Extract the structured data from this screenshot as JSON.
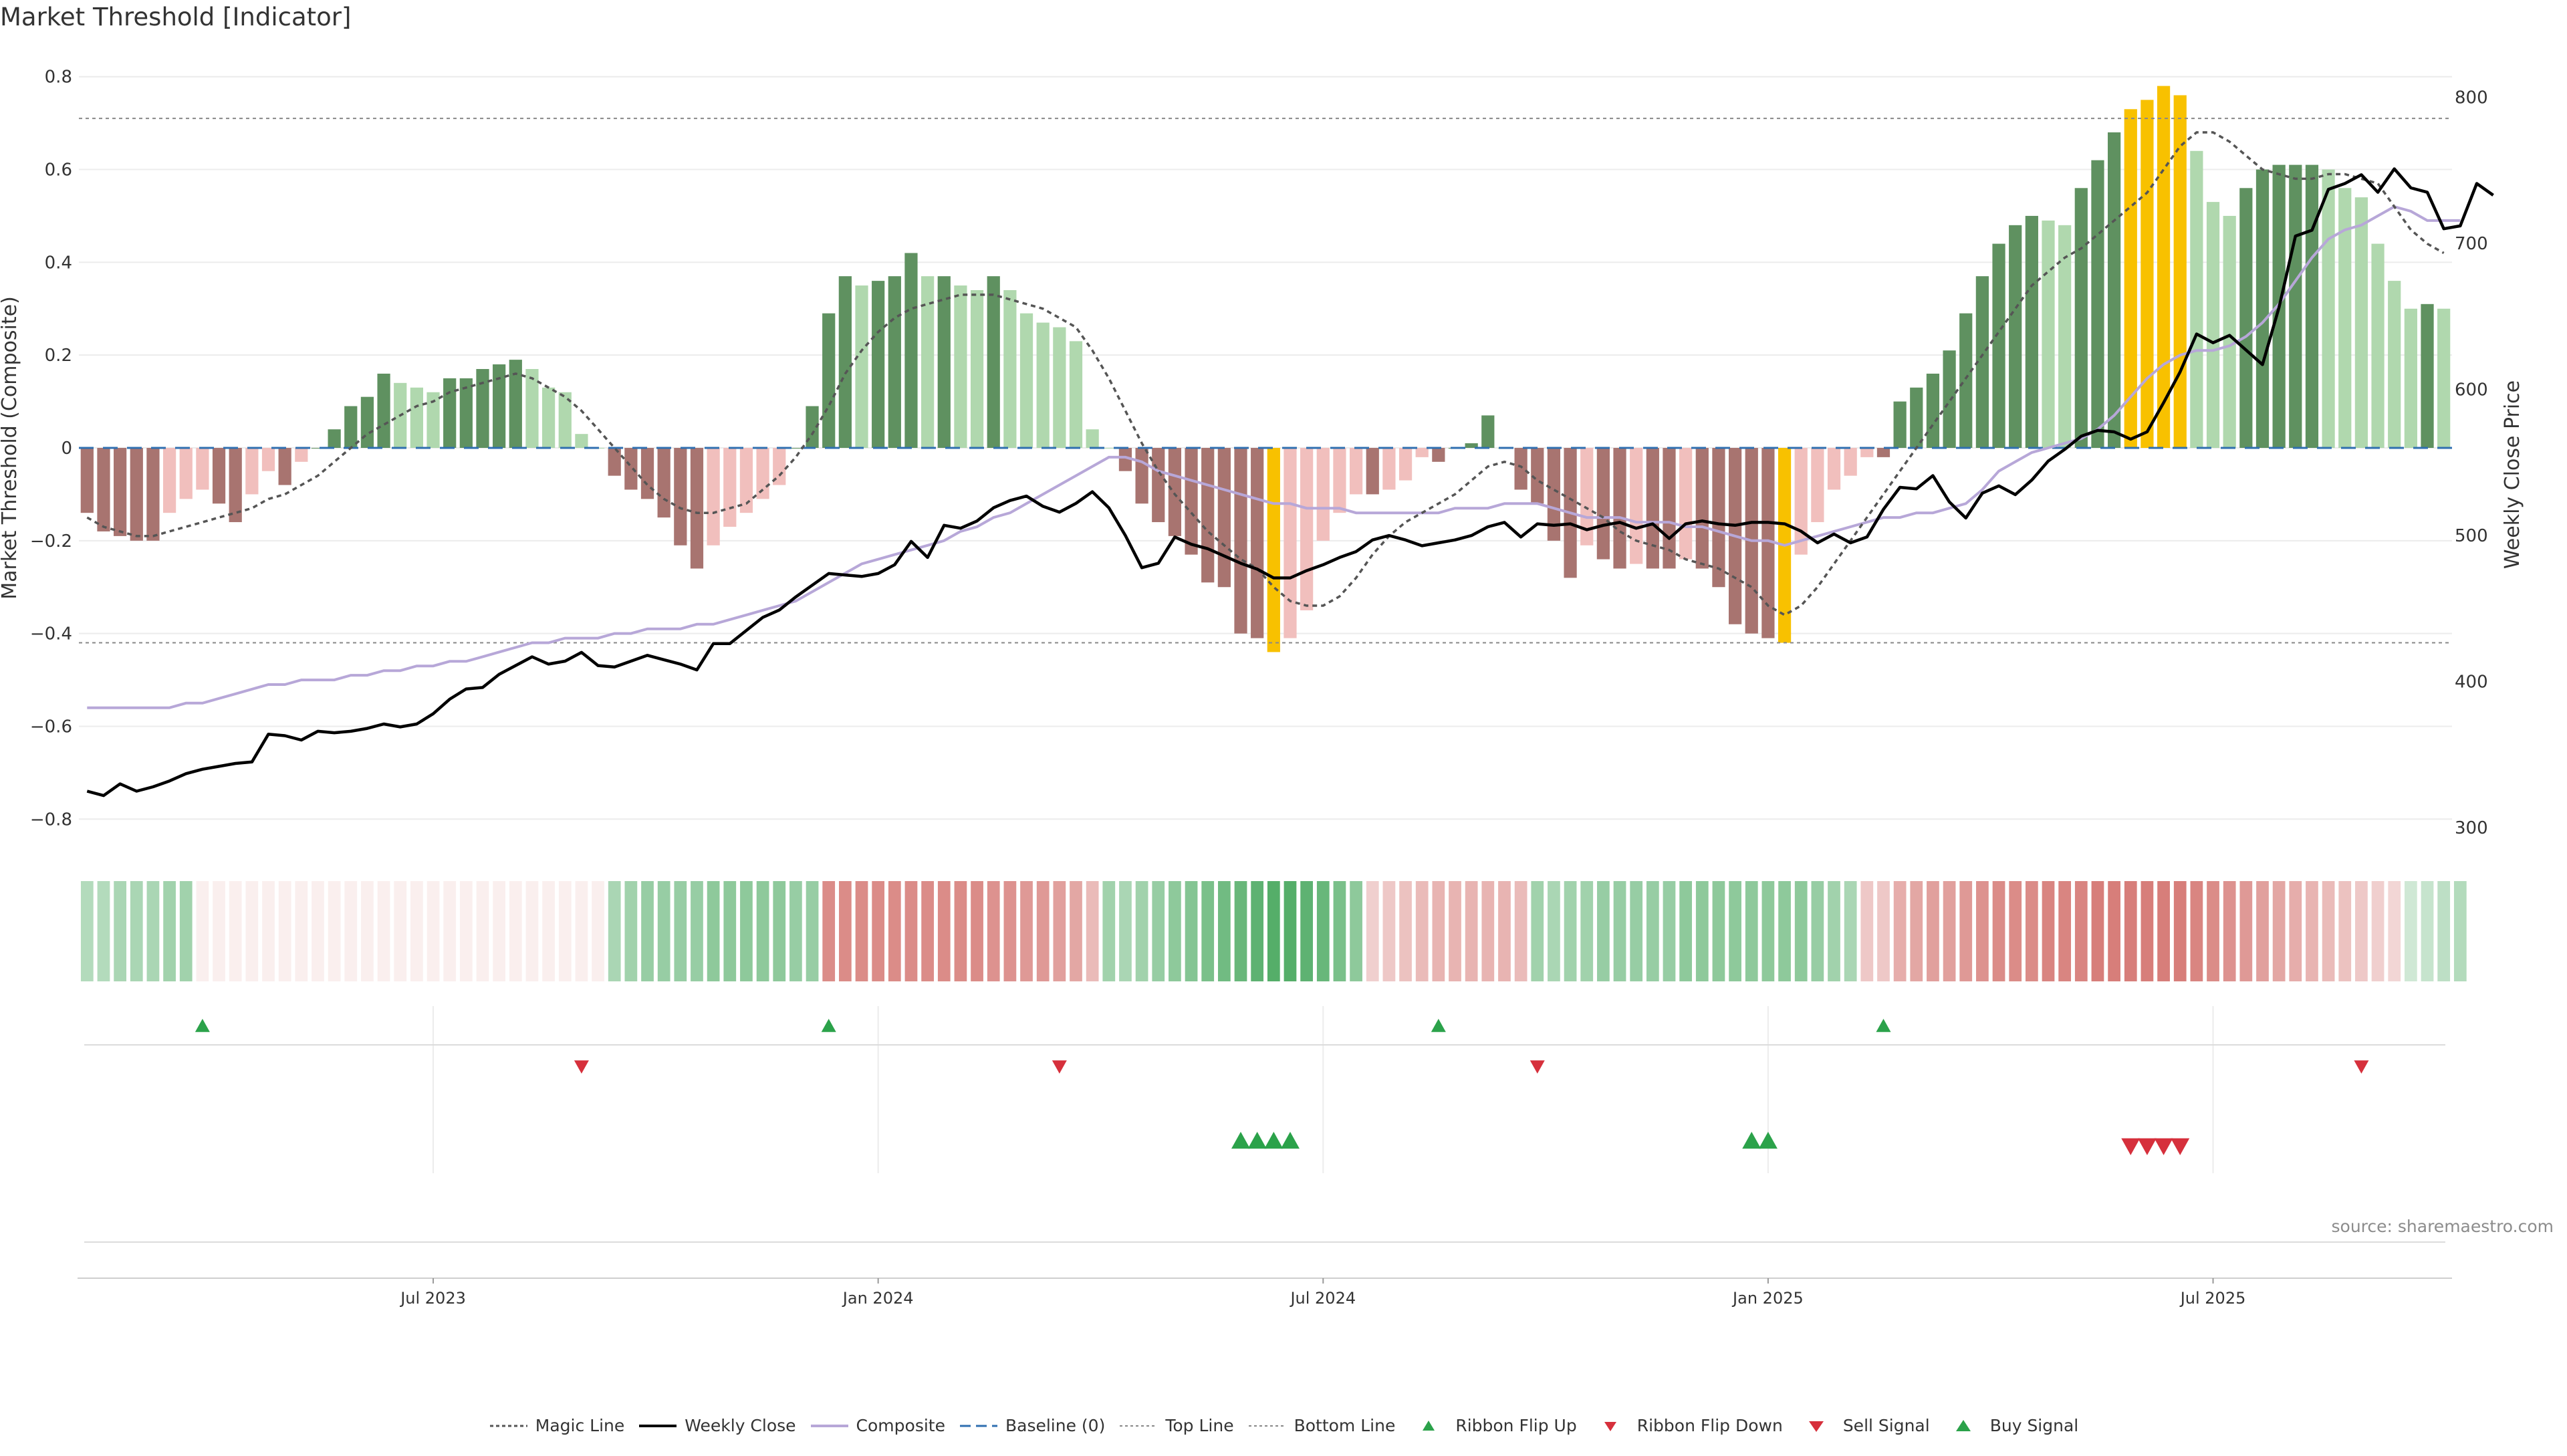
{
  "title": "Market Threshold [Indicator]",
  "source": "source: sharemaestro.com",
  "chart_data": {
    "type": "bar",
    "ylabel_left": "Market Threshold (Composite)",
    "ylabel_right": "Weekly Close Price",
    "ylim_left": [
      -0.85,
      0.85
    ],
    "yticks_left": [
      "0.8",
      "0.6",
      "0.4",
      "0.2",
      "0",
      "−0.2",
      "−0.4",
      "−0.6",
      "−0.8"
    ],
    "ylim_right": [
      290,
      830
    ],
    "yticks_right": [
      "800",
      "700",
      "600",
      "500",
      "400",
      "300"
    ],
    "xticks": [
      "Jul 2023",
      "Jan 2024",
      "Jul 2024",
      "Jan 2025",
      "Jul 2025"
    ],
    "top_line": 0.71,
    "bottom_line": -0.42,
    "grid": true,
    "legend_position": "bottom",
    "composite_bars": [
      -0.14,
      -0.18,
      -0.19,
      -0.2,
      -0.2,
      -0.14,
      -0.11,
      -0.09,
      -0.12,
      -0.16,
      -0.1,
      -0.05,
      -0.08,
      -0.03,
      0,
      0.04,
      0.09,
      0.11,
      0.16,
      0.14,
      0.13,
      0.12,
      0.15,
      0.15,
      0.17,
      0.18,
      0.19,
      0.17,
      0.13,
      0.12,
      0.03,
      0,
      -0.06,
      -0.09,
      -0.11,
      -0.15,
      -0.21,
      -0.26,
      -0.21,
      -0.17,
      -0.14,
      -0.11,
      -0.08,
      0,
      0.09,
      0.29,
      0.37,
      0.35,
      0.36,
      0.37,
      0.42,
      0.37,
      0.37,
      0.35,
      0.34,
      0.37,
      0.34,
      0.29,
      0.27,
      0.26,
      0.23,
      0.04,
      0,
      -0.05,
      -0.12,
      -0.16,
      -0.19,
      -0.23,
      -0.29,
      -0.3,
      -0.4,
      -0.41,
      -0.44,
      -0.41,
      -0.35,
      -0.2,
      -0.14,
      -0.1,
      -0.1,
      -0.09,
      -0.07,
      -0.02,
      -0.03,
      0,
      0.01,
      0.07,
      0,
      -0.09,
      -0.12,
      -0.2,
      -0.28,
      -0.21,
      -0.24,
      -0.26,
      -0.25,
      -0.26,
      -0.26,
      -0.24,
      -0.26,
      -0.3,
      -0.38,
      -0.4,
      -0.41,
      -0.42,
      -0.23,
      -0.16,
      -0.09,
      -0.06,
      -0.02,
      -0.02,
      0.1,
      0.13,
      0.16,
      0.21,
      0.29,
      0.37,
      0.44,
      0.48,
      0.5,
      0.49,
      0.48,
      0.56,
      0.62,
      0.68,
      0.73,
      0.75,
      0.78,
      0.76,
      0.64,
      0.53,
      0.5,
      0.56,
      0.6,
      0.61,
      0.61,
      0.61,
      0.6,
      0.56,
      0.54,
      0.44,
      0.36,
      0.3,
      0.31,
      0.3
    ],
    "magic_line": [
      -0.15,
      -0.17,
      -0.18,
      -0.19,
      -0.19,
      -0.18,
      -0.17,
      -0.16,
      -0.15,
      -0.14,
      -0.13,
      -0.11,
      -0.1,
      -0.08,
      -0.06,
      -0.03,
      0,
      0.03,
      0.05,
      0.07,
      0.09,
      0.1,
      0.12,
      0.13,
      0.14,
      0.15,
      0.16,
      0.15,
      0.13,
      0.11,
      0.08,
      0.04,
      0,
      -0.04,
      -0.08,
      -0.11,
      -0.13,
      -0.14,
      -0.14,
      -0.13,
      -0.12,
      -0.09,
      -0.06,
      -0.02,
      0.03,
      0.09,
      0.16,
      0.21,
      0.25,
      0.28,
      0.3,
      0.31,
      0.32,
      0.33,
      0.33,
      0.33,
      0.32,
      0.31,
      0.3,
      0.28,
      0.26,
      0.21,
      0.15,
      0.08,
      0.01,
      -0.05,
      -0.1,
      -0.14,
      -0.18,
      -0.21,
      -0.24,
      -0.26,
      -0.3,
      -0.33,
      -0.34,
      -0.34,
      -0.32,
      -0.28,
      -0.23,
      -0.19,
      -0.16,
      -0.14,
      -0.12,
      -0.1,
      -0.07,
      -0.04,
      -0.03,
      -0.04,
      -0.07,
      -0.09,
      -0.11,
      -0.13,
      -0.15,
      -0.18,
      -0.2,
      -0.21,
      -0.22,
      -0.24,
      -0.25,
      -0.26,
      -0.28,
      -0.3,
      -0.34,
      -0.36,
      -0.34,
      -0.3,
      -0.25,
      -0.2,
      -0.15,
      -0.1,
      -0.05,
      0,
      0.05,
      0.1,
      0.15,
      0.2,
      0.25,
      0.3,
      0.35,
      0.38,
      0.41,
      0.43,
      0.46,
      0.49,
      0.52,
      0.55,
      0.6,
      0.65,
      0.68,
      0.68,
      0.66,
      0.63,
      0.6,
      0.59,
      0.58,
      0.58,
      0.59,
      0.59,
      0.58,
      0.57,
      0.52,
      0.47,
      0.44,
      0.42
    ],
    "composite_line": [
      -0.56,
      -0.56,
      -0.56,
      -0.56,
      -0.56,
      -0.56,
      -0.55,
      -0.55,
      -0.54,
      -0.53,
      -0.52,
      -0.51,
      -0.51,
      -0.5,
      -0.5,
      -0.5,
      -0.49,
      -0.49,
      -0.48,
      -0.48,
      -0.47,
      -0.47,
      -0.46,
      -0.46,
      -0.45,
      -0.44,
      -0.43,
      -0.42,
      -0.42,
      -0.41,
      -0.41,
      -0.41,
      -0.4,
      -0.4,
      -0.39,
      -0.39,
      -0.39,
      -0.38,
      -0.38,
      -0.37,
      -0.36,
      -0.35,
      -0.34,
      -0.33,
      -0.31,
      -0.29,
      -0.27,
      -0.25,
      -0.24,
      -0.23,
      -0.22,
      -0.21,
      -0.2,
      -0.18,
      -0.17,
      -0.15,
      -0.14,
      -0.12,
      -0.1,
      -0.08,
      -0.06,
      -0.04,
      -0.02,
      -0.02,
      -0.03,
      -0.05,
      -0.06,
      -0.07,
      -0.08,
      -0.09,
      -0.1,
      -0.11,
      -0.12,
      -0.12,
      -0.13,
      -0.13,
      -0.13,
      -0.14,
      -0.14,
      -0.14,
      -0.14,
      -0.14,
      -0.14,
      -0.13,
      -0.13,
      -0.13,
      -0.12,
      -0.12,
      -0.12,
      -0.13,
      -0.14,
      -0.15,
      -0.15,
      -0.15,
      -0.16,
      -0.16,
      -0.16,
      -0.17,
      -0.17,
      -0.18,
      -0.19,
      -0.2,
      -0.2,
      -0.21,
      -0.2,
      -0.19,
      -0.18,
      -0.17,
      -0.16,
      -0.15,
      -0.15,
      -0.14,
      -0.14,
      -0.13,
      -0.12,
      -0.09,
      -0.05,
      -0.03,
      -0.01,
      0,
      0.01,
      0.02,
      0.04,
      0.07,
      0.11,
      0.15,
      0.18,
      0.2,
      0.21,
      0.21,
      0.22,
      0.24,
      0.27,
      0.31,
      0.36,
      0.41,
      0.45,
      0.47,
      0.48,
      0.5,
      0.52,
      0.51,
      0.49,
      0.49,
      0.49
    ],
    "weekly_close": [
      325,
      322,
      330,
      325,
      328,
      332,
      337,
      340,
      342,
      344,
      345,
      364,
      363,
      360,
      366,
      365,
      366,
      368,
      371,
      369,
      371,
      378,
      388,
      395,
      396,
      405,
      411,
      417,
      412,
      414,
      420,
      411,
      410,
      414,
      418,
      415,
      412,
      408,
      426,
      426,
      435,
      444,
      449,
      458,
      466,
      474,
      473,
      472,
      474,
      480,
      496,
      485,
      507,
      505,
      510,
      519,
      524,
      527,
      520,
      516,
      522,
      530,
      519,
      500,
      478,
      481,
      499,
      494,
      491,
      486,
      481,
      477,
      471,
      471,
      476,
      480,
      485,
      489,
      497,
      500,
      497,
      493,
      495,
      497,
      500,
      506,
      509,
      499,
      508,
      507,
      508,
      504,
      507,
      509,
      505,
      508,
      498,
      508,
      510,
      508,
      507,
      509,
      509,
      508,
      503,
      495,
      501,
      495,
      499,
      518,
      533,
      532,
      541,
      523,
      512,
      529,
      534,
      528,
      538,
      551,
      559,
      568,
      572,
      571,
      566,
      571,
      591,
      612,
      638,
      632,
      637,
      627,
      617,
      656,
      705,
      709,
      737,
      741,
      747,
      735,
      751,
      738,
      735,
      710,
      712,
      741,
      733
    ],
    "ribbon_levels": [
      0.4,
      0.4,
      0.45,
      0.45,
      0.45,
      0.5,
      0.5,
      -0.45,
      -0.5,
      -0.5,
      -0.55,
      -0.55,
      -0.55,
      -0.6,
      -0.6,
      -0.6,
      -0.65,
      -0.65,
      -0.65,
      -0.65,
      -0.7,
      -0.7,
      -0.7,
      -0.7,
      -0.7,
      -0.7,
      -0.7,
      -0.65,
      -0.65,
      -0.65,
      -0.65,
      -0.6,
      0.45,
      0.5,
      0.55,
      0.55,
      0.55,
      0.55,
      0.6,
      0.6,
      0.6,
      0.6,
      0.6,
      0.55,
      0.55,
      0.85,
      0.85,
      0.85,
      0.85,
      0.85,
      0.85,
      0.85,
      0.85,
      0.85,
      0.85,
      0.8,
      0.8,
      0.75,
      0.75,
      0.7,
      0.65,
      0.5,
      0.5,
      0.45,
      0.5,
      0.55,
      0.6,
      0.65,
      0.7,
      0.75,
      0.8,
      0.85,
      0.9,
      0.9,
      0.85,
      0.8,
      0.7,
      0.6,
      0.35,
      0.4,
      0.45,
      0.5,
      0.55,
      0.55,
      0.55,
      0.55,
      0.55,
      0.5,
      0.5,
      0.45,
      0.5,
      0.5,
      0.55,
      0.55,
      0.55,
      0.55,
      0.55,
      0.6,
      0.6,
      0.6,
      0.6,
      0.6,
      0.6,
      0.6,
      0.6,
      0.55,
      0.5,
      0.45,
      0.4,
      0.4,
      0.6,
      0.65,
      0.7,
      0.7,
      0.75,
      0.8,
      0.85,
      0.85,
      0.85,
      0.9,
      0.9,
      0.9,
      0.95,
      0.95,
      0.95,
      0.95,
      0.95,
      0.95,
      0.9,
      0.85,
      0.8,
      0.75,
      0.7,
      0.65,
      0.6,
      0.55,
      0.5,
      0.45,
      0.4,
      0.35,
      0.3,
      0.25,
      0.3,
      0.35,
      0.4
    ],
    "ribbon_signs": "-,-,-,-,-,-,-,+,+,+,+,+,+,+,+,+,+,+,+,+,+,+,+,+,+,+,+,+,+,+,+,+,-,-,-,-,-,-,-,-,-,-,-,-,-,+,+,+,+,+,+,+,+,+,+,+,+,+,+,+,+,+,-,-,-,-,-,-,-,-,-,-,-,-,-,-,-,-,+,+,+,+,+,+,+,+,+,+,-,-,-,-,-,-,-,-,-,-,-,-,-,-,-,-,-,-,-,-,+,+,+,+,+,+,+,+,+,+,+,+,+,+,+,+,+,+,+,+,+,+,+,+,+,+,+,+,+,+,+,+,+,-,-,-,-,-",
    "ribbon_flip_up": [
      7,
      45,
      82,
      109
    ],
    "ribbon_flip_down": [
      30,
      59,
      88,
      138
    ],
    "buy_signal": [
      70,
      71,
      72,
      73,
      101,
      102
    ],
    "sell_signal": [
      124,
      125,
      126,
      127
    ],
    "series": [
      {
        "name": "Magic Line"
      },
      {
        "name": "Weekly Close"
      },
      {
        "name": "Composite"
      },
      {
        "name": "Baseline (0)"
      },
      {
        "name": "Top Line"
      },
      {
        "name": "Bottom Line"
      },
      {
        "name": "Ribbon Flip Up"
      },
      {
        "name": "Ribbon Flip Down"
      },
      {
        "name": "Sell Signal"
      },
      {
        "name": "Buy Signal"
      }
    ],
    "colors": {
      "bull_strong": "#5f9160",
      "bull_weak": "#b0d8ae",
      "bear_strong": "#a87470",
      "bear_weak": "#f1bfbd",
      "extreme": "#f8c100",
      "close": "#000000",
      "composite": "#b7a7d8",
      "magic": "#555555",
      "baseline": "#2f6fb0",
      "threshold": "#888888",
      "up_marker": "#2ba24a",
      "down_marker": "#d6303c"
    }
  }
}
